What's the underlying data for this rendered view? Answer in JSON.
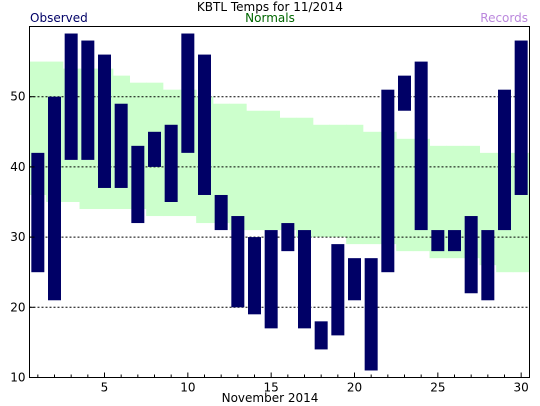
{
  "chart_data": {
    "type": "bar",
    "title": "KBTL Temps for 11/2014",
    "xlabel": "November 2014",
    "ylabel": "",
    "legend": {
      "observed": "Observed",
      "normals": "Normals",
      "records": "Records"
    },
    "colors": {
      "observed": "#000066",
      "normals": "#ccffcc",
      "records": "#bb88dd",
      "grid": "#000000"
    },
    "xlim": [
      1,
      30
    ],
    "ylim": [
      10,
      60
    ],
    "x_ticks": [
      5,
      10,
      15,
      20,
      25,
      30
    ],
    "y_ticks": [
      10,
      20,
      30,
      40,
      50
    ],
    "grid_lines": [
      20,
      30,
      40,
      50
    ],
    "days": [
      1,
      2,
      3,
      4,
      5,
      6,
      7,
      8,
      9,
      10,
      11,
      12,
      13,
      14,
      15,
      16,
      17,
      18,
      19,
      20,
      21,
      22,
      23,
      24,
      25,
      26,
      27,
      28,
      29,
      30
    ],
    "series": [
      {
        "name": "Observed",
        "high": [
          42,
          50,
          59,
          58,
          56,
          49,
          43,
          45,
          46,
          59,
          56,
          36,
          33,
          30,
          31,
          32,
          31,
          18,
          29,
          27,
          27,
          51,
          53,
          55,
          31,
          31,
          33,
          31,
          51,
          58
        ],
        "low": [
          25,
          21,
          41,
          41,
          37,
          37,
          32,
          40,
          35,
          42,
          36,
          31,
          20,
          19,
          17,
          28,
          17,
          14,
          16,
          21,
          11,
          25,
          48,
          31,
          28,
          28,
          22,
          21,
          31,
          36
        ]
      },
      {
        "name": "Normals",
        "high": [
          55,
          55,
          54,
          54,
          54,
          53,
          52,
          52,
          51,
          51,
          50,
          49,
          49,
          48,
          48,
          47,
          47,
          46,
          46,
          46,
          45,
          45,
          44,
          44,
          43,
          43,
          43,
          42,
          42,
          42
        ],
        "low": [
          36,
          35,
          35,
          34,
          34,
          34,
          34,
          33,
          33,
          33,
          32,
          32,
          31,
          31,
          31,
          31,
          30,
          30,
          30,
          29,
          29,
          29,
          28,
          28,
          27,
          27,
          27,
          26,
          25,
          25
        ]
      }
    ]
  }
}
